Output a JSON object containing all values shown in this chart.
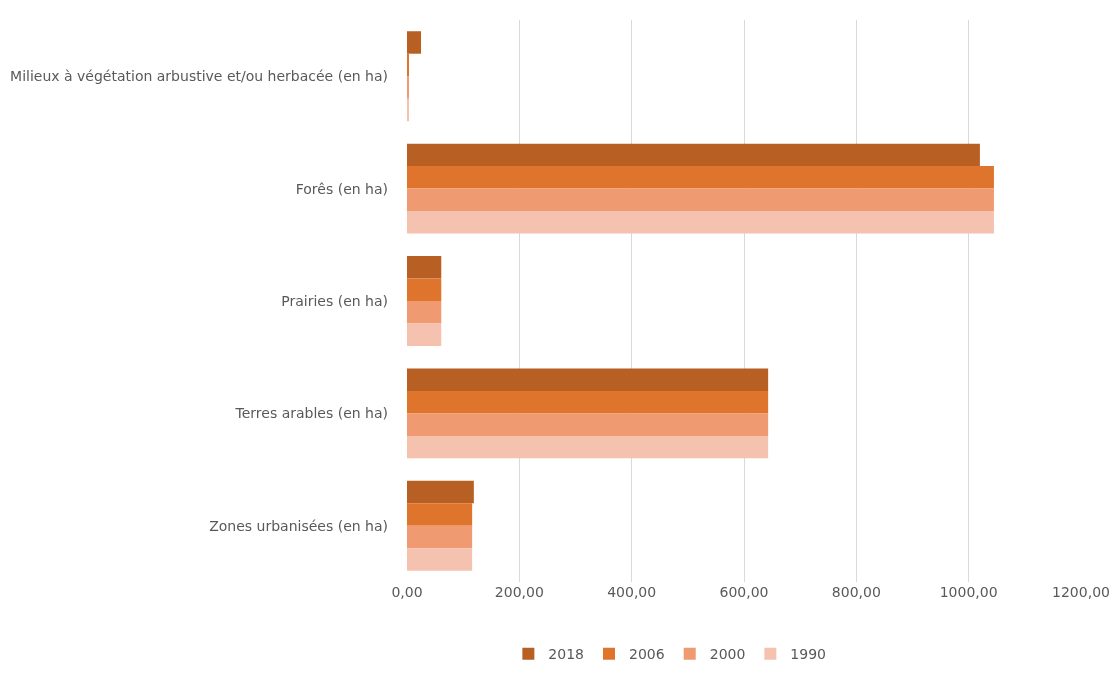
{
  "chart_data": {
    "type": "bar",
    "orientation": "horizontal",
    "categories": [
      "Milieux à végétation arbustive et/ou herbacée (en ha)",
      "Forês (en ha)",
      "Prairies (en ha)",
      "Terres arables (en ha)",
      "Zones urbanisées (en ha)"
    ],
    "series": [
      {
        "name": "2018",
        "color": "#b85f23",
        "values": [
          25,
          1020,
          61,
          643,
          119
        ]
      },
      {
        "name": "2006",
        "color": "#df742c",
        "values": [
          2,
          1045,
          61,
          643,
          116
        ]
      },
      {
        "name": "2000",
        "color": "#f09a72",
        "values": [
          2,
          1045,
          61,
          643,
          116
        ]
      },
      {
        "name": "1990",
        "color": "#f5c2b0",
        "values": [
          2,
          1045,
          61,
          643,
          116
        ]
      }
    ],
    "xlim": [
      0,
      1200
    ],
    "xticks": [
      {
        "value": 0,
        "label": "0,00"
      },
      {
        "value": 200,
        "label": "200,00"
      },
      {
        "value": 400,
        "label": "400,00"
      },
      {
        "value": 600,
        "label": "600,00"
      },
      {
        "value": 800,
        "label": "800,00"
      },
      {
        "value": 1000,
        "label": "1000,00"
      },
      {
        "value": 1200,
        "label": "1200,00"
      }
    ],
    "grid": "x",
    "legend": "bottom"
  }
}
